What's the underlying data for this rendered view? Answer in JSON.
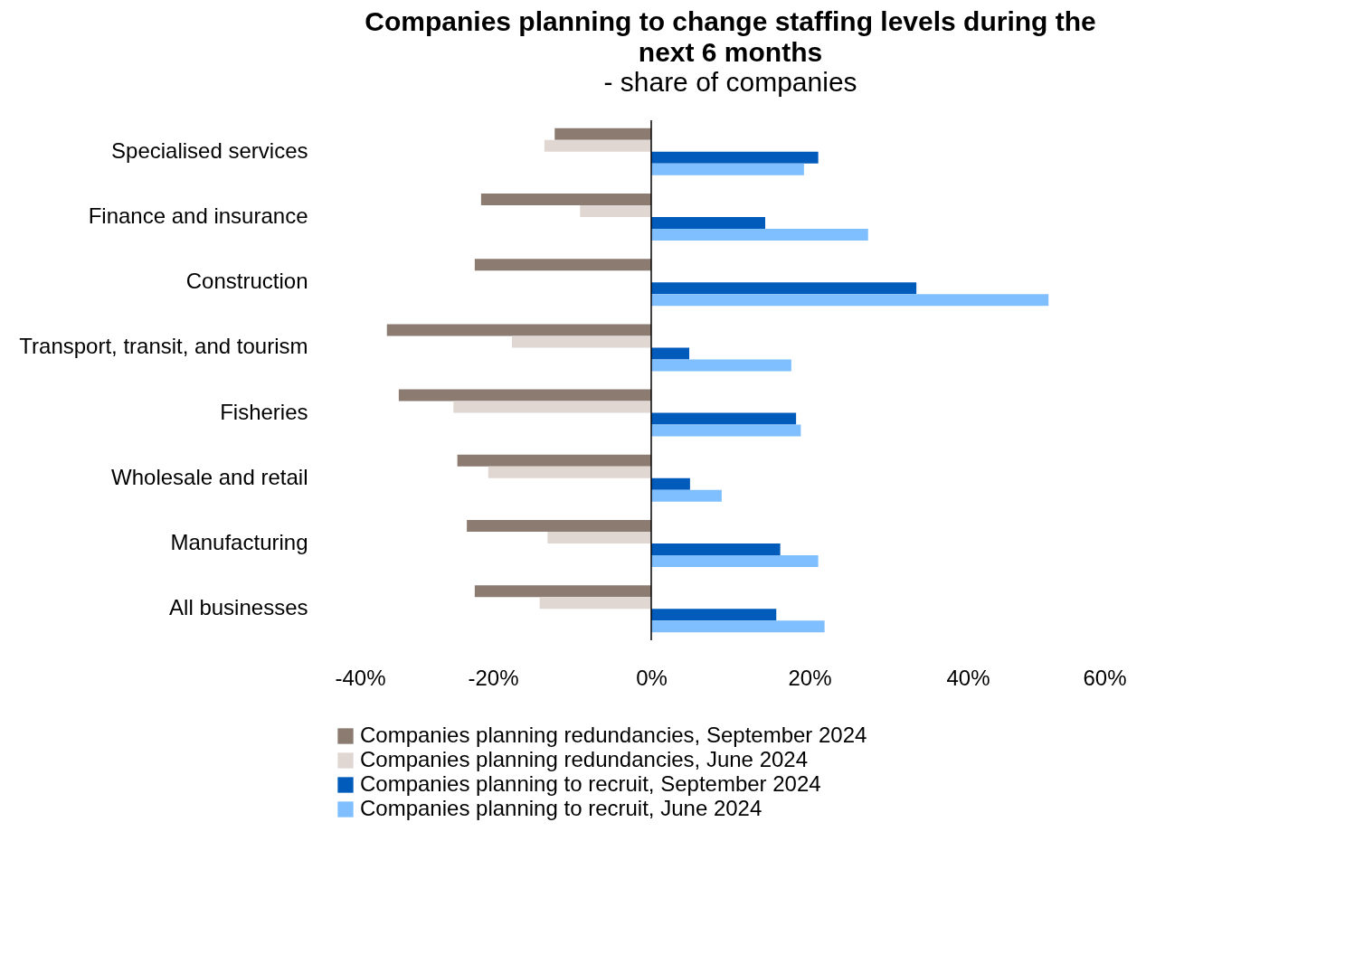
{
  "chart_data": {
    "type": "bar",
    "orientation": "horizontal",
    "title": "Companies planning to change staffing levels during the next 6 months",
    "subtitle": "- share of companies",
    "categories": [
      "Specialised services",
      "Finance and insurance",
      "Construction",
      "Transport, transit, and tourism",
      "Fisheries",
      "Wholesale and retail",
      "Manufacturing",
      "All businesses"
    ],
    "series": [
      {
        "name": "Companies planning redundancies, September 2024",
        "color": "#8c7b70",
        "values": [
          -12.2,
          -21.5,
          -22.3,
          -33.4,
          -31.9,
          -24.5,
          -23.3,
          -22.3
        ]
      },
      {
        "name": "Companies planning redundancies, June 2024",
        "color": "#e0d7d3",
        "values": [
          -13.5,
          -9.0,
          null,
          -17.6,
          -25.0,
          -20.6,
          -13.1,
          -14.1
        ]
      },
      {
        "name": "Companies planning to recruit, September 2024",
        "color": "#005bbb",
        "values": [
          21.1,
          14.4,
          33.5,
          4.8,
          18.3,
          4.9,
          16.3,
          15.8
        ]
      },
      {
        "name": "Companies planning to recruit, June 2024",
        "color": "#7fbfff",
        "values": [
          19.3,
          27.4,
          50.2,
          17.7,
          18.9,
          8.9,
          21.1,
          21.9
        ]
      }
    ],
    "xlim": [
      -40,
      60
    ],
    "xticks": [
      {
        "value": -40,
        "label": "-40%"
      },
      {
        "value": -20,
        "label": "-20%"
      },
      {
        "value": 0,
        "label": "0%"
      },
      {
        "value": 20,
        "label": "20%"
      },
      {
        "value": 40,
        "label": "40%"
      },
      {
        "value": 60,
        "label": "60%"
      }
    ],
    "legend": "bottom"
  }
}
